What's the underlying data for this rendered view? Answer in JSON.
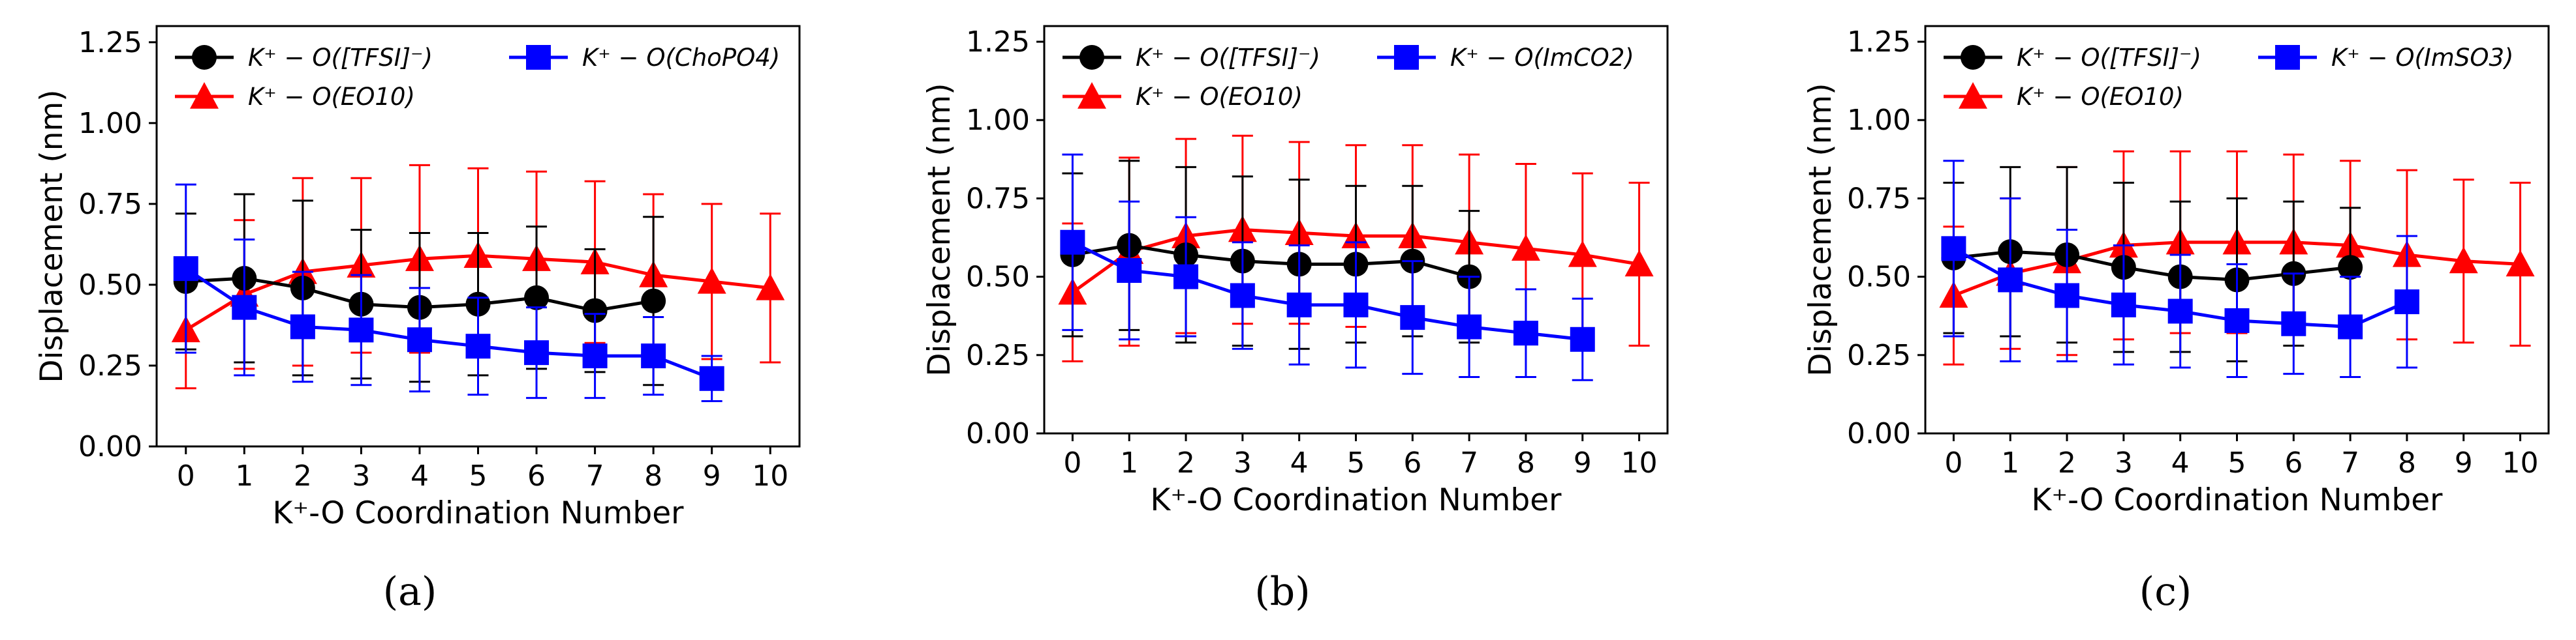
{
  "figure": {
    "panel_labels": [
      "(a)",
      "(b)",
      "(c)"
    ]
  },
  "colors": {
    "TFSI": "#000000",
    "EO10": "#ff0000",
    "anion": "#0000ff"
  },
  "chart_data": [
    {
      "type": "line",
      "panel": "(a)",
      "xlabel": "K⁺-O Coordination Number",
      "ylabel": "Displacement (nm)",
      "xlim": [
        -0.5,
        10.5
      ],
      "ylim": [
        0,
        1.3
      ],
      "xticks": [
        0,
        1,
        2,
        3,
        4,
        5,
        6,
        7,
        8,
        9,
        10
      ],
      "yticks": [
        "0.00",
        "0.25",
        "0.50",
        "0.75",
        "1.00",
        "1.25"
      ],
      "legend_position": "top",
      "series": [
        {
          "name": "K⁺ − O([TFSI]⁻)",
          "color": "#000000",
          "marker": "circle",
          "x": [
            0,
            1,
            2,
            3,
            4,
            5,
            6,
            7,
            8
          ],
          "y": [
            0.51,
            0.52,
            0.49,
            0.44,
            0.43,
            0.44,
            0.46,
            0.42,
            0.45
          ],
          "err": [
            0.21,
            0.26,
            0.27,
            0.23,
            0.23,
            0.22,
            0.22,
            0.19,
            0.26
          ]
        },
        {
          "name": "K⁺ − O(EO10)",
          "color": "#ff0000",
          "marker": "triangle",
          "x": [
            0,
            1,
            2,
            3,
            4,
            5,
            6,
            7,
            8,
            9,
            10
          ],
          "y": [
            0.36,
            0.47,
            0.54,
            0.56,
            0.58,
            0.59,
            0.58,
            0.57,
            0.53,
            0.51,
            0.49
          ],
          "err": [
            0.18,
            0.23,
            0.29,
            0.27,
            0.29,
            0.27,
            0.27,
            0.25,
            0.25,
            0.24,
            0.23
          ]
        },
        {
          "name": "K⁺ − O(ChoPO4)",
          "color": "#0000ff",
          "marker": "square",
          "x": [
            0,
            1,
            2,
            3,
            4,
            5,
            6,
            7,
            8,
            9
          ],
          "y": [
            0.55,
            0.43,
            0.37,
            0.36,
            0.33,
            0.31,
            0.29,
            0.28,
            0.28,
            0.21
          ],
          "err": [
            0.26,
            0.21,
            0.17,
            0.17,
            0.16,
            0.15,
            0.14,
            0.13,
            0.12,
            0.07
          ]
        }
      ]
    },
    {
      "type": "line",
      "panel": "(b)",
      "xlabel": "K⁺-O Coordination Number",
      "ylabel": "Displacement (nm)",
      "xlim": [
        -0.5,
        10.5
      ],
      "ylim": [
        0,
        1.3
      ],
      "xticks": [
        0,
        1,
        2,
        3,
        4,
        5,
        6,
        7,
        8,
        9,
        10
      ],
      "yticks": [
        "0.00",
        "0.25",
        "0.50",
        "0.75",
        "1.00",
        "1.25"
      ],
      "legend_position": "top",
      "series": [
        {
          "name": "K⁺ − O([TFSI]⁻)",
          "color": "#000000",
          "marker": "circle",
          "x": [
            0,
            1,
            2,
            3,
            4,
            5,
            6,
            7
          ],
          "y": [
            0.57,
            0.6,
            0.57,
            0.55,
            0.54,
            0.54,
            0.55,
            0.5
          ],
          "err": [
            0.26,
            0.27,
            0.28,
            0.27,
            0.27,
            0.25,
            0.24,
            0.21
          ]
        },
        {
          "name": "K⁺ − O(EO10)",
          "color": "#ff0000",
          "marker": "triangle",
          "x": [
            0,
            1,
            2,
            3,
            4,
            5,
            6,
            7,
            8,
            9,
            10
          ],
          "y": [
            0.45,
            0.58,
            0.63,
            0.65,
            0.64,
            0.63,
            0.63,
            0.61,
            0.59,
            0.57,
            0.54
          ],
          "err": [
            0.22,
            0.3,
            0.31,
            0.3,
            0.29,
            0.29,
            0.29,
            0.28,
            0.27,
            0.26,
            0.26
          ]
        },
        {
          "name": "K⁺ − O(ImCO2)",
          "color": "#0000ff",
          "marker": "square",
          "x": [
            0,
            1,
            2,
            3,
            4,
            5,
            6,
            7,
            8,
            9
          ],
          "y": [
            0.61,
            0.52,
            0.5,
            0.44,
            0.41,
            0.41,
            0.37,
            0.34,
            0.32,
            0.3
          ],
          "err": [
            0.28,
            0.22,
            0.19,
            0.17,
            0.19,
            0.2,
            0.18,
            0.16,
            0.14,
            0.13
          ]
        }
      ]
    },
    {
      "type": "line",
      "panel": "(c)",
      "xlabel": "K⁺-O Coordination Number",
      "ylabel": "Displacement (nm)",
      "xlim": [
        -0.5,
        10.5
      ],
      "ylim": [
        0,
        1.3
      ],
      "xticks": [
        0,
        1,
        2,
        3,
        4,
        5,
        6,
        7,
        8,
        9,
        10
      ],
      "yticks": [
        "0.00",
        "0.25",
        "0.50",
        "0.75",
        "1.00",
        "1.25"
      ],
      "legend_position": "top",
      "series": [
        {
          "name": "K⁺ − O([TFSI]⁻)",
          "color": "#000000",
          "marker": "circle",
          "x": [
            0,
            1,
            2,
            3,
            4,
            5,
            6,
            7
          ],
          "y": [
            0.56,
            0.58,
            0.57,
            0.53,
            0.5,
            0.49,
            0.51,
            0.53
          ],
          "err": [
            0.24,
            0.27,
            0.28,
            0.27,
            0.24,
            0.26,
            0.23,
            0.19
          ]
        },
        {
          "name": "K⁺ − O(EO10)",
          "color": "#ff0000",
          "marker": "triangle",
          "x": [
            0,
            1,
            2,
            3,
            4,
            5,
            6,
            7,
            8,
            9,
            10
          ],
          "y": [
            0.44,
            0.51,
            0.55,
            0.6,
            0.61,
            0.61,
            0.61,
            0.6,
            0.57,
            0.55,
            0.54
          ],
          "err": [
            0.22,
            0.24,
            0.3,
            0.3,
            0.29,
            0.29,
            0.28,
            0.27,
            0.27,
            0.26,
            0.26
          ]
        },
        {
          "name": "K⁺ − O(ImSO3)",
          "color": "#0000ff",
          "marker": "square",
          "x": [
            0,
            1,
            2,
            3,
            4,
            5,
            6,
            7,
            8
          ],
          "y": [
            0.59,
            0.49,
            0.44,
            0.41,
            0.39,
            0.36,
            0.35,
            0.34,
            0.42
          ],
          "err": [
            0.28,
            0.26,
            0.21,
            0.19,
            0.18,
            0.18,
            0.16,
            0.16,
            0.21
          ]
        }
      ]
    }
  ]
}
